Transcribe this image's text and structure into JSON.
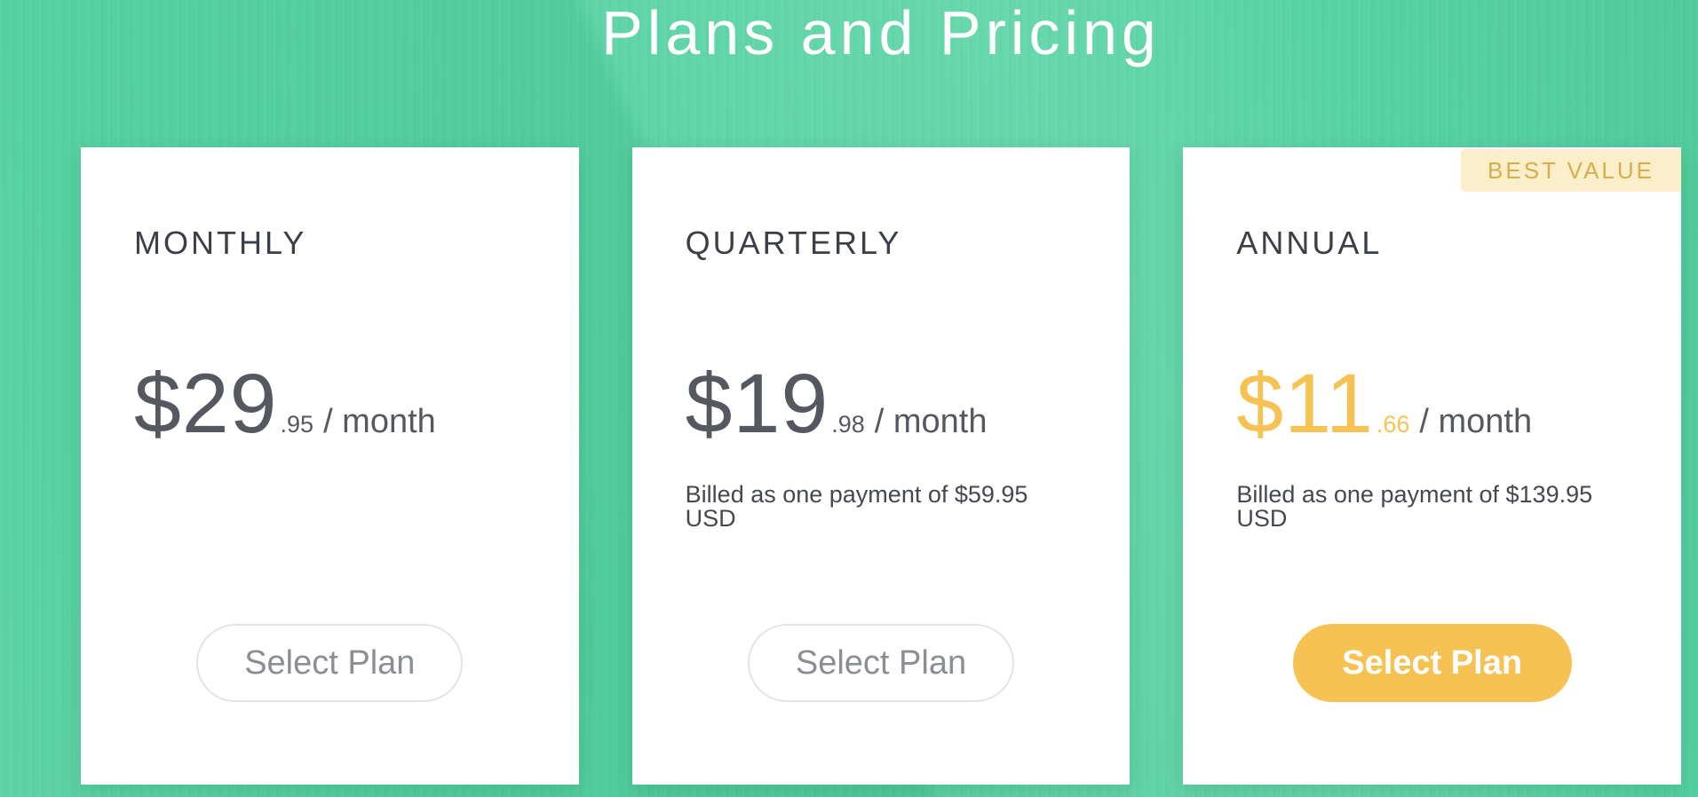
{
  "page": {
    "title": "Plans and Pricing"
  },
  "colors": {
    "background_teal": "#55d1a1",
    "accent_gold": "#f6c253",
    "badge_bg": "#faeecb",
    "badge_text": "#d9ae4a",
    "heading_dark": "#3c4046",
    "price_gray": "#55585e",
    "billed_gray": "#45494e",
    "button_border": "#e3e4e6",
    "button_text_gray": "#8b8e93"
  },
  "plans": [
    {
      "name": "MONTHLY",
      "currency": "$",
      "price_whole": "29",
      "price_cents": ".95",
      "price_per": "/ month",
      "billed_note": "",
      "button_label": "Select Plan",
      "badge": "",
      "highlighted": false
    },
    {
      "name": "QUARTERLY",
      "currency": "$",
      "price_whole": "19",
      "price_cents": ".98",
      "price_per": "/ month",
      "billed_note": "Billed as one payment of $59.95 USD",
      "button_label": "Select Plan",
      "badge": "",
      "highlighted": false
    },
    {
      "name": "ANNUAL",
      "currency": "$",
      "price_whole": "11",
      "price_cents": ".66",
      "price_per": "/ month",
      "billed_note": "Billed as one payment of $139.95 USD",
      "button_label": "Select Plan",
      "badge": "BEST VALUE",
      "highlighted": true
    }
  ]
}
